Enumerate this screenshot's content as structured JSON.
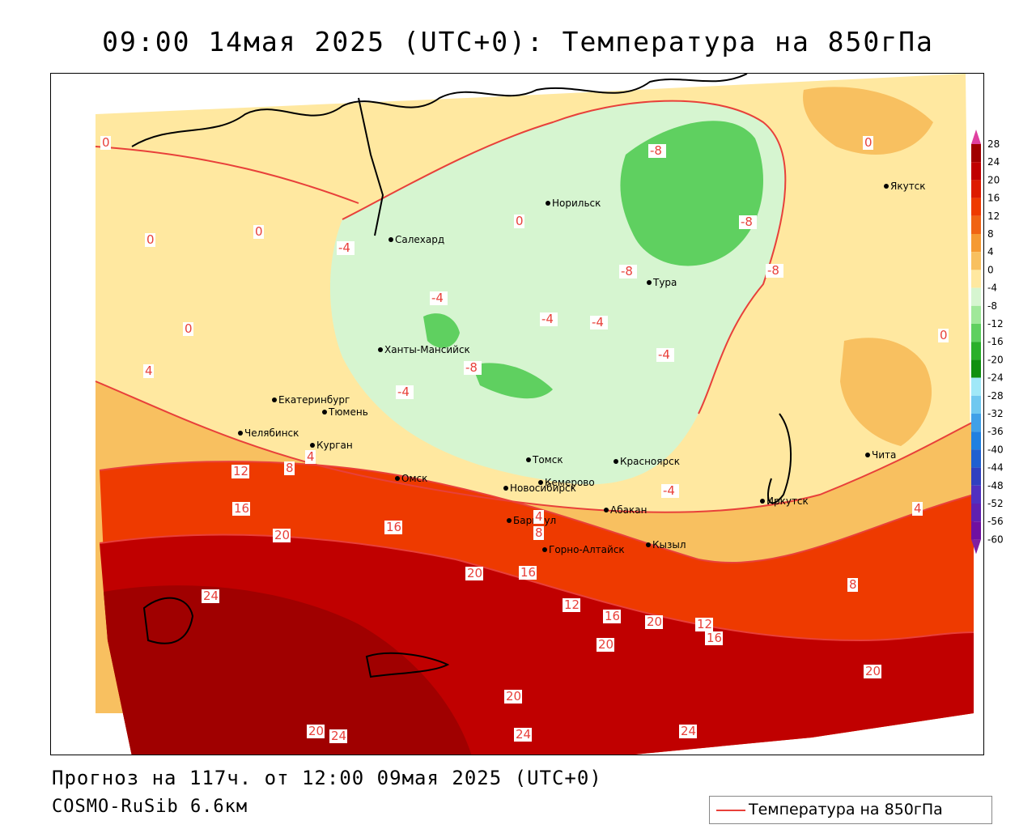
{
  "title": "09:00 14мая 2025 (UTC+0): Температура на 850гПа",
  "footer": {
    "forecast": "Прогноз на 117ч. от 12:00 09мая 2025 (UTC+0)",
    "model": "COSMO-RuSib 6.6км"
  },
  "legend": {
    "label": "Температура на 850гПа",
    "line_color": "#e8403a"
  },
  "colorbar": {
    "ticks": [
      "28",
      "24",
      "20",
      "16",
      "12",
      "8",
      "4",
      "0",
      "-4",
      "-8",
      "-12",
      "-16",
      "-20",
      "-24",
      "-28",
      "-32",
      "-36",
      "-40",
      "-44",
      "-48",
      "-52",
      "-56",
      "-60"
    ],
    "colors": [
      "#a00000",
      "#c00000",
      "#dd1a00",
      "#ee3a00",
      "#f06414",
      "#f59a32",
      "#f8c060",
      "#ffe8a0",
      "#d6f5d0",
      "#a0e89a",
      "#5fd060",
      "#2ab02a",
      "#109010",
      "#a0e8f8",
      "#70c8f0",
      "#40a0e8",
      "#2080e0",
      "#2060d0",
      "#3040c0",
      "#5030c0",
      "#6020b0",
      "#7010a0"
    ]
  },
  "cities": [
    {
      "name": "Норильск"
    },
    {
      "name": "Салехард"
    },
    {
      "name": "Якутск"
    },
    {
      "name": "Тура"
    },
    {
      "name": "Ханты-Мансийск"
    },
    {
      "name": "Екатеринбург"
    },
    {
      "name": "Тюмень"
    },
    {
      "name": "Челябинск"
    },
    {
      "name": "Курган"
    },
    {
      "name": "Омск"
    },
    {
      "name": "Новосибирск"
    },
    {
      "name": "Томск"
    },
    {
      "name": "Красноярск"
    },
    {
      "name": "Кемерово"
    },
    {
      "name": "Абакан"
    },
    {
      "name": "Барнаул"
    },
    {
      "name": "Горно-Алтайск"
    },
    {
      "name": "Кызыл"
    },
    {
      "name": "Иркутск"
    },
    {
      "name": "Чита"
    }
  ],
  "contour_labels": [
    "0",
    "0",
    "0",
    "0",
    "0",
    "0",
    "0",
    "-4",
    "-4",
    "-4",
    "-4",
    "-4",
    "-4",
    "-4",
    "-8",
    "-8",
    "-8",
    "-8",
    "-8",
    "4",
    "4",
    "4",
    "4",
    "8",
    "8",
    "8",
    "12",
    "12",
    "12",
    "16",
    "16",
    "16",
    "16",
    "16",
    "20",
    "20",
    "20",
    "20",
    "20",
    "20",
    "20",
    "24",
    "24",
    "24",
    "24"
  ]
}
